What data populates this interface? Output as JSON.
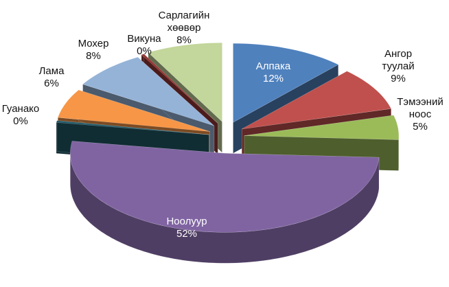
{
  "chart_data": {
    "type": "pie3d",
    "categories": [
      "Алпака",
      "Ангор туулай",
      "Тэмээний ноос",
      "Ноолуур",
      "Гуанако",
      "Лама",
      "Мохер",
      "Викуна",
      "Сарлагийн хөөвөр"
    ],
    "values": [
      12,
      9,
      5,
      52,
      0.4,
      6,
      8,
      0.3,
      8
    ],
    "value_labels": [
      "12%",
      "9%",
      "5%",
      "52%",
      "0%",
      "6%",
      "8%",
      "0%",
      "8%"
    ],
    "colors": [
      "#4f81bd",
      "#c0504d",
      "#9bbb59",
      "#8064a2",
      "#215968",
      "#f79646",
      "#95b3d7",
      "#953735",
      "#c3d69b"
    ]
  }
}
